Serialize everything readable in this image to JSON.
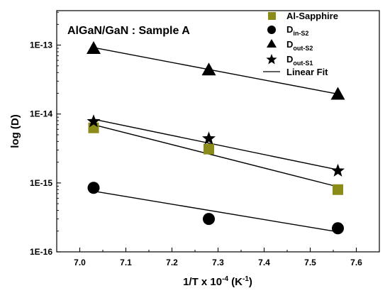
{
  "chart_data": {
    "type": "scatter",
    "title": "AlGaN/GaN : Sample A",
    "xlabel": {
      "main": "1/T x 10",
      "exp": "-4",
      "unit_open": " (K",
      "unit_exp": "-1",
      "unit_close": ")"
    },
    "ylabel": "log (D)",
    "xlim": [
      6.95,
      7.65
    ],
    "ylim_log10": [
      -16,
      -12.5
    ],
    "y_scale": "log",
    "x_ticks": [
      7.0,
      7.1,
      7.2,
      7.3,
      7.4,
      7.5,
      7.6
    ],
    "x_tick_labels": [
      "7.0",
      "7.1",
      "7.2",
      "7.3",
      "7.4",
      "7.5",
      "7.6"
    ],
    "y_ticks": [
      1e-16,
      1e-15,
      1e-14,
      1e-13
    ],
    "y_tick_labels": [
      "1E-16",
      "1E-15",
      "1E-14",
      "1E-13"
    ],
    "grid": false,
    "legend_position": "top-right",
    "series": [
      {
        "name": "Al-Sapphire",
        "marker": "square",
        "color": "#8b8b1a",
        "x": [
          7.03,
          7.28,
          7.56
        ],
        "y": [
          6.3e-15,
          3.1e-15,
          8e-16
        ],
        "fit": [
          [
            7.03,
            7e-15
          ],
          [
            7.56,
            8.8e-16
          ]
        ]
      },
      {
        "name": "D",
        "name_sub": "in-S2",
        "marker": "circle",
        "color": "#000000",
        "x": [
          7.03,
          7.28,
          7.56
        ],
        "y": [
          8.5e-16,
          3e-16,
          2.2e-16
        ],
        "fit": [
          [
            7.03,
            7.6e-16
          ],
          [
            7.56,
            1.95e-16
          ]
        ]
      },
      {
        "name": "D",
        "name_sub": "out-S2",
        "marker": "triangle",
        "color": "#000000",
        "x": [
          7.03,
          7.28,
          7.56
        ],
        "y": [
          9e-14,
          4.4e-14,
          1.95e-14
        ],
        "fit": [
          [
            7.03,
            9.2e-14
          ],
          [
            7.56,
            1.95e-14
          ]
        ]
      },
      {
        "name": "D",
        "name_sub": "out-S1",
        "marker": "star",
        "color": "#000000",
        "x": [
          7.03,
          7.28,
          7.56
        ],
        "y": [
          7.8e-15,
          4.4e-15,
          1.5e-15
        ],
        "fit": [
          [
            7.03,
            8.4e-15
          ],
          [
            7.56,
            1.55e-15
          ]
        ]
      }
    ],
    "fit_legend": "Linear Fit"
  }
}
